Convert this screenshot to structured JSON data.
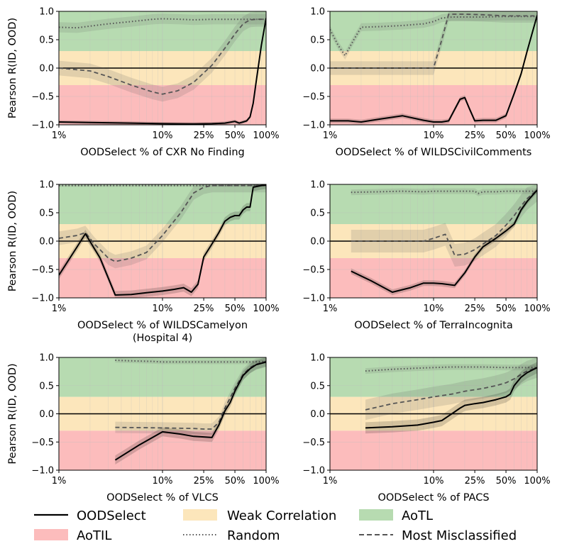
{
  "colors": {
    "aotl": "#b7dbb1",
    "weak": "#fce6bb",
    "aotil": "#fcbcbc",
    "main_line": "#000000",
    "random_line": "#555555",
    "misclassified_line": "#555555"
  },
  "legend": {
    "oodselect": "OODSelect",
    "weak": "Weak Correlation",
    "aotl": "AoTL",
    "aotil": "AoTIL",
    "random": "Random",
    "misclassified": "Most Misclassified"
  },
  "chart_data": [
    {
      "type": "line",
      "title": "",
      "xlabel": "OODSelect % of CXR No Finding",
      "xlabel2": "",
      "ylabel": "Pearson R(ID, OOD)",
      "xscale": "log",
      "xlim": [
        1,
        100
      ],
      "ylim": [
        -1,
        1
      ],
      "xticks": [
        {
          "v": 1,
          "l": "1%"
        },
        {
          "v": 10,
          "l": "10%"
        },
        {
          "v": 25,
          "l": "25%"
        },
        {
          "v": 50,
          "l": "50%"
        },
        {
          "v": 100,
          "l": "100%"
        }
      ],
      "yticks": [
        -1.0,
        -0.5,
        0.0,
        0.5,
        1.0
      ],
      "ytick_labels": [
        "−1.0",
        "−0.5",
        "0.0",
        "0.5",
        "1.0"
      ],
      "bands": [
        {
          "name": "AoTL",
          "from": 0.3,
          "to": 1.0
        },
        {
          "name": "Weak Correlation",
          "from": -0.3,
          "to": 0.3
        },
        {
          "name": "AoTIL",
          "from": -1.0,
          "to": -0.3
        }
      ],
      "series": [
        {
          "name": "Random",
          "style": "dotted",
          "spread": 0.09,
          "x": [
            1,
            1.5,
            2,
            3,
            5,
            8,
            10,
            15,
            20,
            30,
            40,
            50,
            60,
            70,
            80,
            100
          ],
          "y": [
            0.72,
            0.71,
            0.74,
            0.78,
            0.82,
            0.86,
            0.87,
            0.86,
            0.85,
            0.86,
            0.86,
            0.86,
            0.86,
            0.86,
            0.86,
            0.86
          ]
        },
        {
          "name": "Most Misclassified",
          "style": "dashed",
          "spread": 0.13,
          "x": [
            1,
            2,
            3,
            5,
            8,
            10,
            14,
            20,
            30,
            40,
            50,
            60,
            70,
            80,
            100
          ],
          "y": [
            0.0,
            -0.05,
            -0.15,
            -0.3,
            -0.42,
            -0.46,
            -0.4,
            -0.25,
            0.05,
            0.35,
            0.6,
            0.78,
            0.85,
            0.86,
            0.86
          ]
        },
        {
          "name": "OODSelect",
          "style": "solid",
          "spread": 0.03,
          "x": [
            1,
            2,
            5,
            10,
            20,
            30,
            40,
            50,
            55,
            60,
            65,
            70,
            75,
            80,
            90,
            100
          ],
          "y": [
            -0.95,
            -0.96,
            -0.97,
            -0.98,
            -0.985,
            -0.98,
            -0.97,
            -0.94,
            -0.97,
            -0.95,
            -0.93,
            -0.86,
            -0.62,
            -0.25,
            0.4,
            0.88
          ]
        }
      ]
    },
    {
      "type": "line",
      "title": "",
      "xlabel": "OODSelect % of WILDSCivilComments",
      "xlabel2": "",
      "ylabel": "",
      "xscale": "log",
      "xlim": [
        1,
        100
      ],
      "ylim": [
        -1,
        1
      ],
      "xticks": [
        {
          "v": 1,
          "l": "1%"
        },
        {
          "v": 10,
          "l": "10%"
        },
        {
          "v": 25,
          "l": "25%"
        },
        {
          "v": 50,
          "l": "50%"
        },
        {
          "v": 100,
          "l": "100%"
        }
      ],
      "yticks": [
        -1.0,
        -0.5,
        0.0,
        0.5,
        1.0
      ],
      "ytick_labels": [
        "−1.0",
        "−0.5",
        "0.0",
        "0.5",
        "1.0"
      ],
      "bands": [
        {
          "name": "AoTL",
          "from": 0.3,
          "to": 1.0
        },
        {
          "name": "Weak Correlation",
          "from": -0.3,
          "to": 0.3
        },
        {
          "name": "AoTIL",
          "from": -1.0,
          "to": -0.3
        }
      ],
      "series": [
        {
          "name": "Random",
          "style": "dotted",
          "spread": 0.07,
          "x": [
            1,
            1.2,
            1.4,
            1.7,
            2,
            3,
            5,
            8,
            10,
            12,
            15,
            20,
            30,
            50,
            70,
            100
          ],
          "y": [
            0.68,
            0.4,
            0.22,
            0.5,
            0.72,
            0.73,
            0.75,
            0.78,
            0.82,
            0.88,
            0.9,
            0.9,
            0.9,
            0.91,
            0.91,
            0.91
          ]
        },
        {
          "name": "Most Misclassified",
          "style": "dashed",
          "spread": 0.12,
          "x": [
            1,
            2,
            3,
            5,
            8,
            10,
            12,
            14,
            20,
            30,
            50,
            70,
            100
          ],
          "y": [
            0.0,
            0.0,
            0.0,
            0.0,
            0.0,
            0.0,
            0.5,
            0.95,
            0.95,
            0.94,
            0.92,
            0.92,
            0.92
          ]
        },
        {
          "name": "OODSelect",
          "style": "solid",
          "spread": 0.04,
          "x": [
            1,
            1.5,
            2,
            3,
            5,
            8,
            10,
            12,
            14,
            18,
            20,
            22,
            25,
            30,
            40,
            50,
            60,
            70,
            80,
            100
          ],
          "y": [
            -0.93,
            -0.93,
            -0.95,
            -0.9,
            -0.84,
            -0.92,
            -0.95,
            -0.95,
            -0.93,
            -0.55,
            -0.52,
            -0.7,
            -0.93,
            -0.92,
            -0.92,
            -0.84,
            -0.45,
            -0.1,
            0.3,
            0.93
          ]
        }
      ]
    },
    {
      "type": "line",
      "title": "",
      "xlabel": "OODSelect % of WILDSCamelyon",
      "xlabel2": "(Hospital 4)",
      "ylabel": "Pearson R(ID, OOD)",
      "xscale": "log",
      "xlim": [
        1,
        100
      ],
      "ylim": [
        -1,
        1
      ],
      "xticks": [
        {
          "v": 1,
          "l": "1%"
        },
        {
          "v": 10,
          "l": "10%"
        },
        {
          "v": 25,
          "l": "25%"
        },
        {
          "v": 50,
          "l": "50%"
        },
        {
          "v": 100,
          "l": "100%"
        }
      ],
      "yticks": [
        -1.0,
        -0.5,
        0.0,
        0.5,
        1.0
      ],
      "ytick_labels": [
        "−1.0",
        "−0.5",
        "0.0",
        "0.5",
        "1.0"
      ],
      "bands": [
        {
          "name": "AoTL",
          "from": 0.3,
          "to": 1.0
        },
        {
          "name": "Weak Correlation",
          "from": -0.3,
          "to": 0.3
        },
        {
          "name": "AoTIL",
          "from": -1.0,
          "to": -0.3
        }
      ],
      "series": [
        {
          "name": "Random",
          "style": "dotted",
          "spread": 0.02,
          "x": [
            1,
            2,
            5,
            10,
            20,
            30,
            50,
            70,
            100
          ],
          "y": [
            0.98,
            0.98,
            0.98,
            0.98,
            0.98,
            0.98,
            0.98,
            0.98,
            0.98
          ]
        },
        {
          "name": "Most Misclassified",
          "style": "dashed",
          "spread": 0.12,
          "x": [
            1,
            1.5,
            1.8,
            2.2,
            3,
            3.5,
            5,
            7,
            10,
            15,
            20,
            25,
            30,
            40,
            50,
            100
          ],
          "y": [
            0.05,
            0.1,
            0.15,
            -0.05,
            -0.3,
            -0.36,
            -0.3,
            -0.2,
            0.1,
            0.5,
            0.85,
            0.95,
            0.98,
            0.98,
            0.98,
            0.98
          ]
        },
        {
          "name": "OODSelect",
          "style": "solid",
          "spread": 0.07,
          "x": [
            1,
            1.5,
            1.8,
            2.5,
            3.5,
            5,
            7,
            10,
            13,
            16,
            19,
            22,
            25,
            30,
            35,
            40,
            45,
            50,
            55,
            60,
            65,
            70,
            75,
            80,
            90,
            100
          ],
          "y": [
            -0.6,
            -0.1,
            0.13,
            -0.3,
            -0.95,
            -0.94,
            -0.91,
            -0.88,
            -0.85,
            -0.82,
            -0.9,
            -0.76,
            -0.28,
            -0.05,
            0.15,
            0.35,
            0.42,
            0.45,
            0.45,
            0.55,
            0.6,
            0.6,
            0.95,
            0.96,
            0.98,
            0.99
          ]
        }
      ]
    },
    {
      "type": "line",
      "title": "",
      "xlabel": "OODSelect % of TerraIncognita",
      "xlabel2": "",
      "ylabel": "",
      "xscale": "log",
      "xlim": [
        1,
        100
      ],
      "ylim": [
        -1,
        1
      ],
      "xticks": [
        {
          "v": 1,
          "l": "1%"
        },
        {
          "v": 10,
          "l": "10%"
        },
        {
          "v": 25,
          "l": "25%"
        },
        {
          "v": 50,
          "l": "50%"
        },
        {
          "v": 100,
          "l": "100%"
        }
      ],
      "yticks": [
        -1.0,
        -0.5,
        0.0,
        0.5,
        1.0
      ],
      "ytick_labels": [
        "−1.0",
        "−0.5",
        "0.0",
        "0.5",
        "1.0"
      ],
      "bands": [
        {
          "name": "AoTL",
          "from": 0.3,
          "to": 1.0
        },
        {
          "name": "Weak Correlation",
          "from": -0.3,
          "to": 0.3
        },
        {
          "name": "AoTIL",
          "from": -1.0,
          "to": -0.3
        }
      ],
      "series": [
        {
          "name": "Random",
          "style": "dotted",
          "spread": 0.05,
          "x": [
            1.6,
            3,
            5,
            8,
            10,
            15,
            20,
            25,
            27,
            30,
            40,
            50,
            70,
            100
          ],
          "y": [
            0.86,
            0.87,
            0.88,
            0.87,
            0.88,
            0.88,
            0.88,
            0.88,
            0.84,
            0.87,
            0.87,
            0.88,
            0.88,
            0.88
          ]
        },
        {
          "name": "Most Misclassified",
          "style": "dashed",
          "spread": 0.2,
          "x": [
            1.6,
            3,
            5,
            8,
            10,
            13,
            16,
            20,
            25,
            30,
            40,
            50,
            60,
            70,
            80,
            100
          ],
          "y": [
            0.0,
            0.0,
            0.0,
            0.0,
            0.05,
            0.12,
            -0.25,
            -0.23,
            -0.15,
            -0.05,
            0.1,
            0.28,
            0.45,
            0.62,
            0.75,
            0.9
          ]
        },
        {
          "name": "OODSelect",
          "style": "solid",
          "spread": 0.05,
          "x": [
            1.6,
            2.5,
            4,
            6,
            8,
            10,
            12,
            16,
            20,
            25,
            30,
            40,
            50,
            60,
            70,
            80,
            100
          ],
          "y": [
            -0.53,
            -0.7,
            -0.9,
            -0.82,
            -0.74,
            -0.74,
            -0.75,
            -0.78,
            -0.56,
            -0.28,
            -0.1,
            0.05,
            0.18,
            0.3,
            0.55,
            0.7,
            0.9
          ]
        }
      ]
    },
    {
      "type": "line",
      "title": "",
      "xlabel": "OODSelect % of VLCS",
      "xlabel2": "",
      "ylabel": "Pearson R(ID, OOD)",
      "xscale": "log",
      "xlim": [
        1,
        100
      ],
      "ylim": [
        -1,
        1
      ],
      "xticks": [
        {
          "v": 1,
          "l": "1%"
        },
        {
          "v": 10,
          "l": "10%"
        },
        {
          "v": 25,
          "l": "25%"
        },
        {
          "v": 50,
          "l": "50%"
        },
        {
          "v": 100,
          "l": "100%"
        }
      ],
      "yticks": [
        -1.0,
        -0.5,
        0.0,
        0.5,
        1.0
      ],
      "ytick_labels": [
        "−1.0",
        "−0.5",
        "0.0",
        "0.5",
        "1.0"
      ],
      "bands": [
        {
          "name": "AoTL",
          "from": 0.3,
          "to": 1.0
        },
        {
          "name": "Weak Correlation",
          "from": -0.3,
          "to": 0.3
        },
        {
          "name": "AoTIL",
          "from": -1.0,
          "to": -0.3
        }
      ],
      "series": [
        {
          "name": "Random",
          "style": "dotted",
          "spread": 0.04,
          "x": [
            3.5,
            5,
            8,
            10,
            15,
            20,
            30,
            50,
            70,
            100
          ],
          "y": [
            0.95,
            0.94,
            0.93,
            0.92,
            0.92,
            0.92,
            0.92,
            0.92,
            0.92,
            0.93
          ]
        },
        {
          "name": "Most Misclassified",
          "style": "dashed",
          "spread": 0.1,
          "x": [
            3.5,
            10,
            20,
            25,
            30,
            35,
            40,
            50,
            60,
            70,
            80,
            100
          ],
          "y": [
            -0.24,
            -0.25,
            -0.26,
            -0.27,
            -0.27,
            -0.15,
            0.1,
            0.45,
            0.7,
            0.82,
            0.88,
            0.93
          ]
        },
        {
          "name": "OODSelect",
          "style": "solid",
          "spread": 0.08,
          "x": [
            3.5,
            6,
            10,
            15,
            20,
            25,
            30,
            35,
            40,
            45,
            50,
            60,
            70,
            80,
            100
          ],
          "y": [
            -0.82,
            -0.55,
            -0.32,
            -0.36,
            -0.4,
            -0.41,
            -0.42,
            -0.2,
            0.05,
            0.2,
            0.4,
            0.68,
            0.8,
            0.87,
            0.92
          ]
        }
      ]
    },
    {
      "type": "line",
      "title": "",
      "xlabel": "OODSelect % of PACS",
      "xlabel2": "",
      "ylabel": "",
      "xscale": "log",
      "xlim": [
        1,
        100
      ],
      "ylim": [
        -1,
        1
      ],
      "xticks": [
        {
          "v": 1,
          "l": "1%"
        },
        {
          "v": 10,
          "l": "10%"
        },
        {
          "v": 25,
          "l": "25%"
        },
        {
          "v": 50,
          "l": "50%"
        },
        {
          "v": 100,
          "l": "100%"
        }
      ],
      "yticks": [
        -1.0,
        -0.5,
        0.0,
        0.5,
        1.0
      ],
      "ytick_labels": [
        "−1.0",
        "−0.5",
        "0.0",
        "0.5",
        "1.0"
      ],
      "bands": [
        {
          "name": "AoTL",
          "from": 0.3,
          "to": 1.0
        },
        {
          "name": "Weak Correlation",
          "from": -0.3,
          "to": 0.3
        },
        {
          "name": "AoTIL",
          "from": -1.0,
          "to": -0.3
        }
      ],
      "series": [
        {
          "name": "Random",
          "style": "dotted",
          "spread": 0.05,
          "x": [
            2.2,
            4,
            7,
            10,
            15,
            20,
            30,
            50,
            70,
            100
          ],
          "y": [
            0.76,
            0.79,
            0.81,
            0.82,
            0.83,
            0.83,
            0.83,
            0.82,
            0.82,
            0.82
          ]
        },
        {
          "name": "Most Misclassified",
          "style": "dashed",
          "spread": 0.18,
          "x": [
            2.2,
            4,
            7,
            10,
            15,
            20,
            30,
            40,
            50,
            60,
            70,
            80,
            100
          ],
          "y": [
            0.07,
            0.18,
            0.25,
            0.3,
            0.35,
            0.4,
            0.45,
            0.5,
            0.55,
            0.62,
            0.7,
            0.76,
            0.82
          ]
        },
        {
          "name": "OODSelect",
          "style": "solid",
          "spread": 0.1,
          "x": [
            2.2,
            4,
            7,
            10,
            12,
            15,
            18,
            20,
            25,
            30,
            40,
            50,
            55,
            60,
            70,
            80,
            100
          ],
          "y": [
            -0.25,
            -0.23,
            -0.2,
            -0.15,
            -0.12,
            0.0,
            0.1,
            0.15,
            0.18,
            0.2,
            0.25,
            0.3,
            0.35,
            0.5,
            0.65,
            0.73,
            0.82
          ]
        }
      ]
    }
  ]
}
